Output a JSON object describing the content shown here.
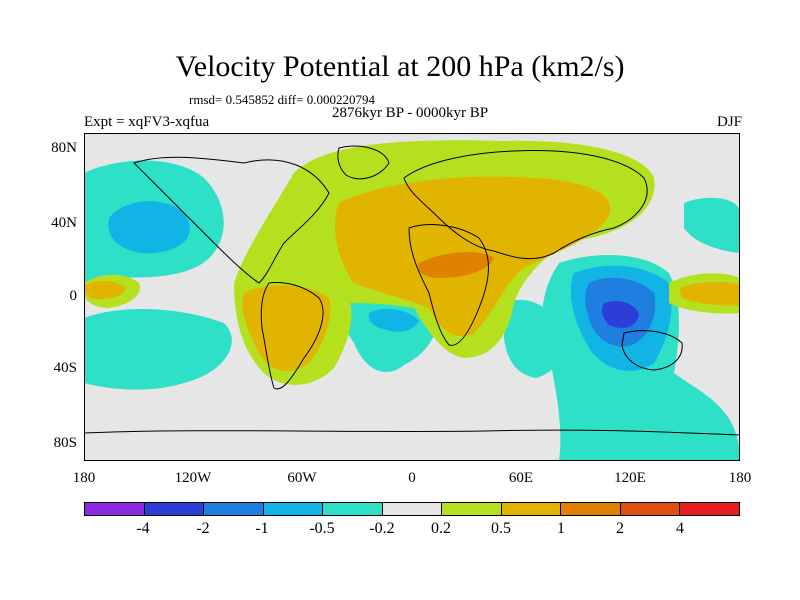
{
  "title": "Velocity Potential at 200 hPa (km2/s)",
  "stats": "rmsd= 0.545852 diff= 0.000220794",
  "period": "2876kyr BP - 0000kyr BP",
  "experiment": "Expt = xqFV3-xqfua",
  "season": "DJF",
  "lat_ticks": [
    "80N",
    "40N",
    "0",
    "40S",
    "80S"
  ],
  "lon_ticks": [
    "180",
    "120W",
    "60W",
    "0",
    "60E",
    "120E",
    "180"
  ],
  "colorbar": {
    "colors": [
      "#8a2be2",
      "#2b3fd8",
      "#1e7fe0",
      "#12b4e6",
      "#2fe0c8",
      "#e6e6e6",
      "#b4e01e",
      "#e0b400",
      "#e08200",
      "#e04e14",
      "#e61e1e"
    ],
    "labels": [
      "-4",
      "-2",
      "-1",
      "-0.5",
      "-0.2",
      "0.2",
      "0.5",
      "1",
      "2",
      "4"
    ]
  },
  "map_colors": {
    "background": "#e6e6e6",
    "neg_weak": "#2fe0c8",
    "neg_mid": "#12b4e6",
    "neg_strong": "#1e7fe0",
    "neg_vstrong": "#2b3fd8",
    "pos_weak": "#b4e01e",
    "pos_mid": "#e0b400",
    "pos_strong": "#e08200"
  }
}
